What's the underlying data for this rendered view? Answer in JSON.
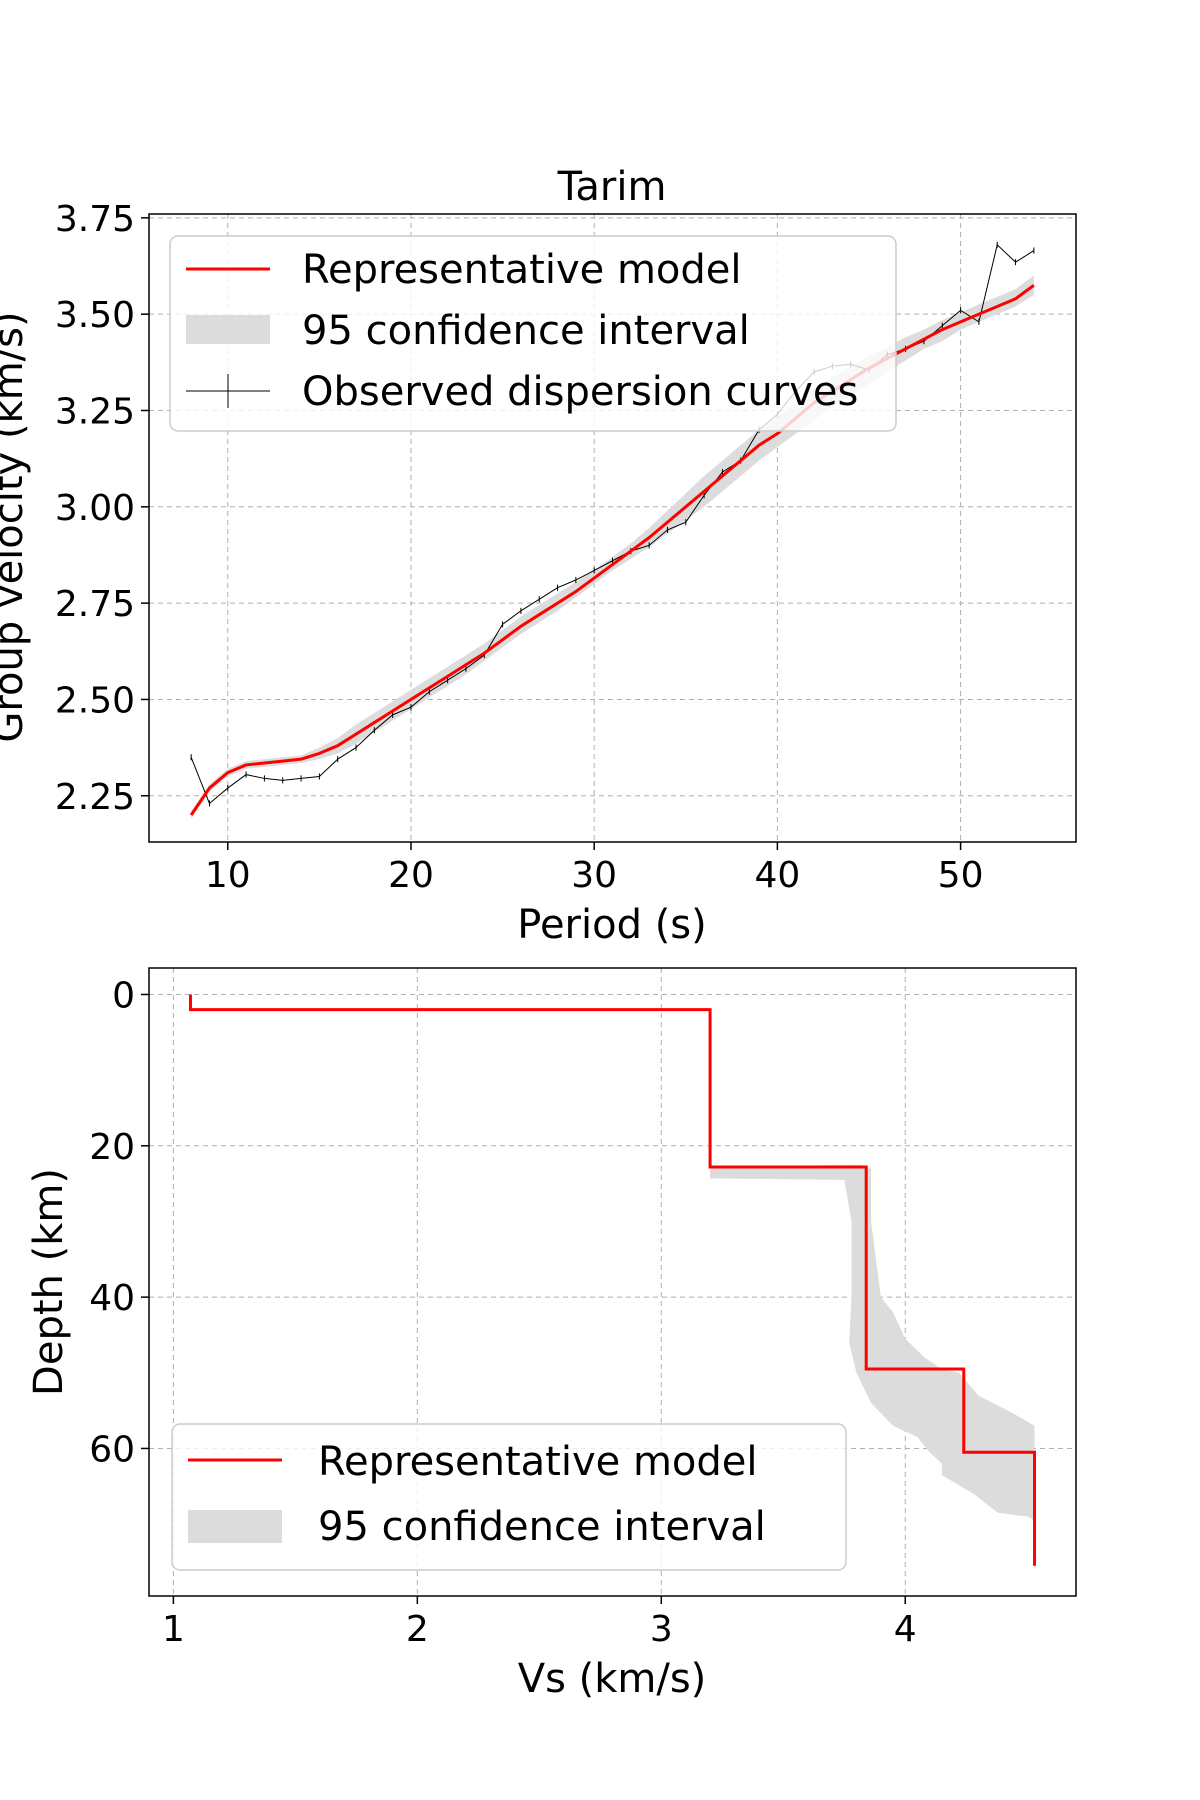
{
  "colors": {
    "model": "#ff0000",
    "ci": "#dcdcdc",
    "observed": "#000000",
    "grid": "#b0b0b0",
    "legend_edge": "#cccccc"
  },
  "chart_data": [
    {
      "type": "line",
      "title": "Tarim",
      "xlabel": "Period (s)",
      "ylabel": "Group velocity (km/s)",
      "xlim": [
        5.7,
        56.3
      ],
      "ylim": [
        2.13,
        3.76
      ],
      "xticks": [
        10,
        20,
        30,
        40,
        50
      ],
      "yticks": [
        2.25,
        2.5,
        2.75,
        3.0,
        3.25,
        3.5,
        3.75
      ],
      "xtick_labels": [
        "10",
        "20",
        "30",
        "40",
        "50"
      ],
      "ytick_labels": [
        "2.25",
        "2.50",
        "2.75",
        "3.00",
        "3.25",
        "3.50",
        "3.75"
      ],
      "grid": true,
      "legend_position": "upper-left",
      "legend": [
        "Representative model",
        "95 confidence interval",
        "Observed dispersion curves"
      ],
      "series": [
        {
          "name": "Representative model",
          "kind": "line",
          "x": [
            8,
            9,
            10,
            11,
            12,
            13,
            14,
            15,
            16,
            17,
            18,
            19,
            20,
            21,
            22,
            23,
            24,
            25,
            26,
            27,
            28,
            29,
            30,
            31,
            32,
            33,
            34,
            35,
            36,
            37,
            38,
            39,
            40,
            41,
            42,
            43,
            44,
            45,
            46,
            47,
            48,
            49,
            50,
            51,
            52,
            53,
            54
          ],
          "y": [
            2.2,
            2.27,
            2.31,
            2.33,
            2.335,
            2.34,
            2.345,
            2.36,
            2.38,
            2.41,
            2.44,
            2.47,
            2.5,
            2.53,
            2.56,
            2.59,
            2.62,
            2.655,
            2.69,
            2.72,
            2.75,
            2.78,
            2.815,
            2.85,
            2.885,
            2.92,
            2.96,
            3.0,
            3.04,
            3.08,
            3.12,
            3.16,
            3.19,
            3.23,
            3.27,
            3.3,
            3.33,
            3.36,
            3.385,
            3.41,
            3.435,
            3.46,
            3.48,
            3.5,
            3.52,
            3.54,
            3.575
          ]
        },
        {
          "name": "95 confidence interval",
          "kind": "band",
          "x": [
            8,
            9,
            10,
            11,
            12,
            13,
            14,
            15,
            16,
            17,
            18,
            19,
            20,
            21,
            22,
            23,
            24,
            25,
            26,
            27,
            28,
            29,
            30,
            31,
            32,
            33,
            34,
            35,
            36,
            37,
            38,
            39,
            40,
            41,
            42,
            43,
            44,
            45,
            46,
            47,
            48,
            49,
            50,
            51,
            52,
            53,
            54
          ],
          "lower": [
            2.19,
            2.26,
            2.3,
            2.32,
            2.325,
            2.33,
            2.335,
            2.345,
            2.36,
            2.385,
            2.415,
            2.445,
            2.475,
            2.505,
            2.535,
            2.565,
            2.6,
            2.635,
            2.67,
            2.7,
            2.73,
            2.765,
            2.8,
            2.835,
            2.865,
            2.895,
            2.93,
            2.965,
            3.0,
            3.04,
            3.08,
            3.12,
            3.155,
            3.19,
            3.225,
            3.26,
            3.29,
            3.32,
            3.35,
            3.38,
            3.41,
            3.43,
            3.46,
            3.48,
            3.5,
            3.52,
            3.55
          ],
          "upper": [
            2.21,
            2.28,
            2.32,
            2.34,
            2.345,
            2.35,
            2.355,
            2.375,
            2.4,
            2.435,
            2.465,
            2.495,
            2.525,
            2.555,
            2.585,
            2.615,
            2.645,
            2.68,
            2.715,
            2.745,
            2.775,
            2.805,
            2.835,
            2.87,
            2.905,
            2.945,
            2.99,
            3.035,
            3.08,
            3.12,
            3.16,
            3.2,
            3.235,
            3.27,
            3.305,
            3.335,
            3.365,
            3.39,
            3.415,
            3.44,
            3.46,
            3.485,
            3.505,
            3.525,
            3.545,
            3.565,
            3.6
          ]
        },
        {
          "name": "Observed dispersion curves",
          "kind": "errorbar-line",
          "x": [
            8,
            9,
            10,
            11,
            12,
            13,
            14,
            15,
            16,
            17,
            18,
            19,
            20,
            21,
            22,
            23,
            24,
            25,
            26,
            27,
            28,
            29,
            30,
            31,
            32,
            33,
            34,
            35,
            36,
            37,
            38,
            39,
            40,
            41,
            42,
            43,
            44,
            45,
            46,
            47,
            48,
            49,
            50,
            51,
            52,
            53,
            54
          ],
          "y": [
            2.35,
            2.23,
            2.27,
            2.305,
            2.295,
            2.29,
            2.295,
            2.3,
            2.345,
            2.375,
            2.42,
            2.46,
            2.48,
            2.52,
            2.55,
            2.58,
            2.615,
            2.695,
            2.73,
            2.76,
            2.79,
            2.81,
            2.835,
            2.86,
            2.885,
            2.9,
            2.94,
            2.96,
            3.03,
            3.09,
            3.12,
            3.2,
            3.24,
            3.3,
            3.35,
            3.365,
            3.37,
            3.355,
            3.395,
            3.41,
            3.43,
            3.47,
            3.51,
            3.48,
            3.68,
            3.635,
            3.665
          ],
          "err": [
            0.008,
            0.008,
            0.008,
            0.008,
            0.008,
            0.008,
            0.008,
            0.008,
            0.008,
            0.008,
            0.008,
            0.008,
            0.008,
            0.008,
            0.008,
            0.008,
            0.008,
            0.008,
            0.008,
            0.008,
            0.008,
            0.008,
            0.008,
            0.008,
            0.008,
            0.008,
            0.008,
            0.008,
            0.008,
            0.008,
            0.008,
            0.008,
            0.008,
            0.008,
            0.008,
            0.008,
            0.008,
            0.008,
            0.008,
            0.008,
            0.008,
            0.008,
            0.008,
            0.008,
            0.008,
            0.008,
            0.008
          ]
        }
      ]
    },
    {
      "type": "line",
      "title": "",
      "xlabel": "Vs (km/s)",
      "ylabel": "Depth (km)",
      "xlim": [
        0.9,
        4.7
      ],
      "ylim": [
        79.5,
        -3.5
      ],
      "y_inverted": true,
      "xticks": [
        1,
        2,
        3,
        4
      ],
      "yticks": [
        0,
        20,
        40,
        60
      ],
      "xtick_labels": [
        "1",
        "2",
        "3",
        "4"
      ],
      "ytick_labels": [
        "0",
        "20",
        "40",
        "60"
      ],
      "grid": true,
      "legend_position": "lower-left",
      "legend": [
        "Representative model",
        "95 confidence interval"
      ],
      "series": [
        {
          "name": "Representative model",
          "kind": "step-profile",
          "vs": [
            1.07,
            1.07,
            3.2,
            3.2,
            3.84,
            3.84,
            4.24,
            4.24,
            4.53,
            4.53
          ],
          "depth": [
            0,
            2,
            2,
            22.8,
            22.8,
            49.5,
            49.5,
            60.5,
            60.5,
            75.5
          ]
        },
        {
          "name": "95 confidence interval",
          "kind": "band-profile",
          "left": [
            [
              3.2,
              22.8
            ],
            [
              3.2,
              24.3
            ],
            [
              3.75,
              24.5
            ],
            [
              3.78,
              30
            ],
            [
              3.78,
              40
            ],
            [
              3.77,
              46
            ],
            [
              3.8,
              50
            ],
            [
              3.86,
              54
            ],
            [
              3.95,
              57
            ],
            [
              4.05,
              58.5
            ],
            [
              4.1,
              60.5
            ],
            [
              4.15,
              62
            ],
            [
              4.15,
              63.5
            ],
            [
              4.28,
              66
            ],
            [
              4.38,
              68.5
            ],
            [
              4.5,
              69
            ],
            [
              4.53,
              69.5
            ]
          ],
          "right": [
            [
              3.2,
              22.8
            ],
            [
              3.82,
              22.5
            ],
            [
              3.86,
              23
            ],
            [
              3.86,
              30
            ],
            [
              3.9,
              40
            ],
            [
              3.95,
              42
            ],
            [
              4.0,
              45.5
            ],
            [
              4.08,
              48
            ],
            [
              4.15,
              49.5
            ],
            [
              4.22,
              50
            ],
            [
              4.3,
              53
            ],
            [
              4.45,
              55.5
            ],
            [
              4.53,
              57
            ],
            [
              4.53,
              69.5
            ]
          ]
        }
      ]
    }
  ]
}
